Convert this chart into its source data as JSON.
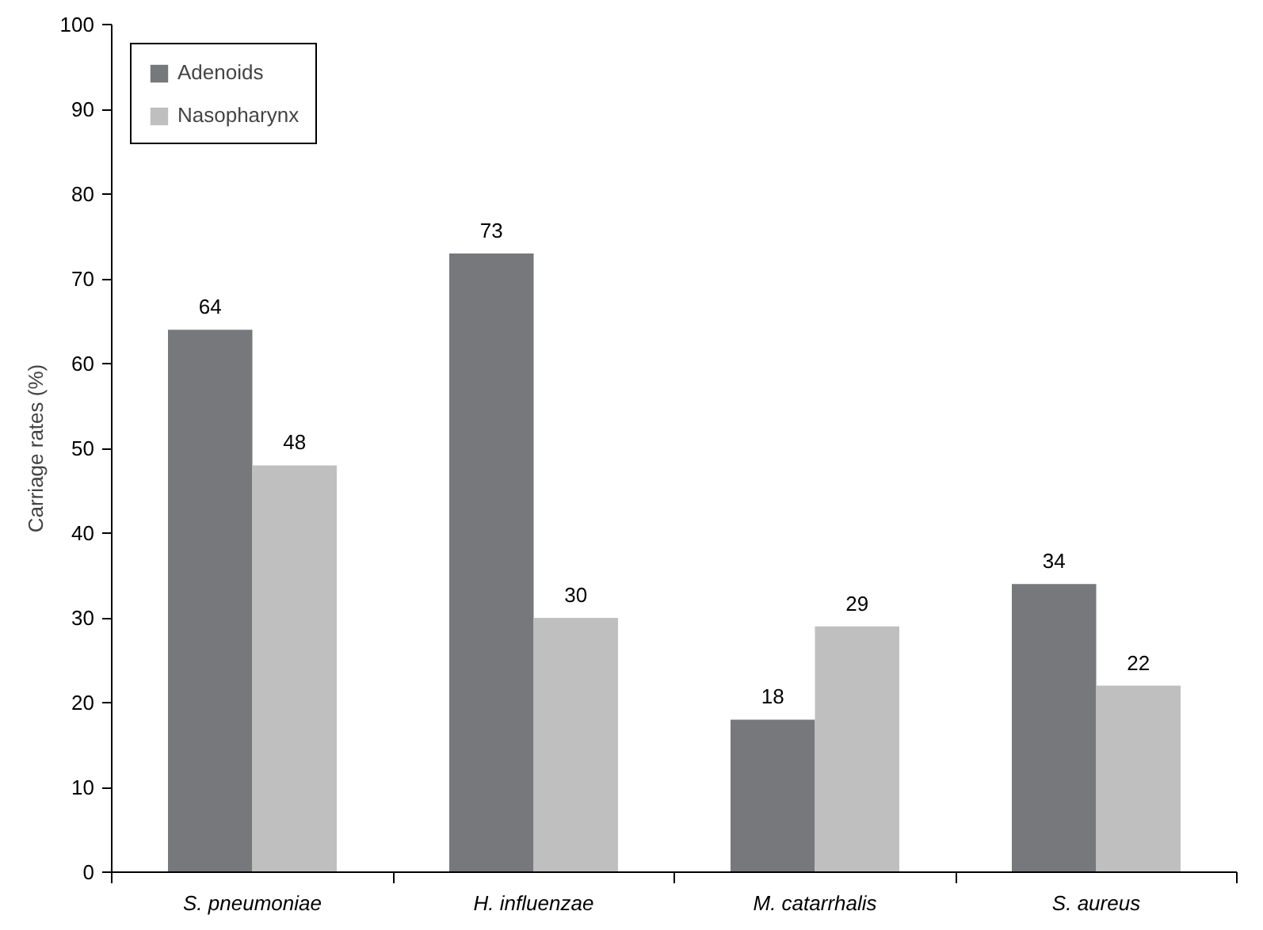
{
  "chart_data": {
    "type": "bar",
    "ylabel": "Carriage rates (%)",
    "categories": [
      "S. pneumoniae",
      "H. influenzae",
      "M. catarrhalis",
      "S. aureus"
    ],
    "series": [
      {
        "name": "Adenoids",
        "color": "#77787b",
        "values": [
          64,
          73,
          18,
          34
        ]
      },
      {
        "name": "Nasopharynx",
        "color": "#bfbfbf",
        "values": [
          48,
          30,
          29,
          22
        ]
      }
    ],
    "ylim": [
      0,
      100
    ],
    "yticks": [
      0,
      10,
      20,
      30,
      40,
      50,
      60,
      70,
      80,
      90,
      100
    ],
    "data_labels": true,
    "grid": false,
    "legend": "top left"
  }
}
